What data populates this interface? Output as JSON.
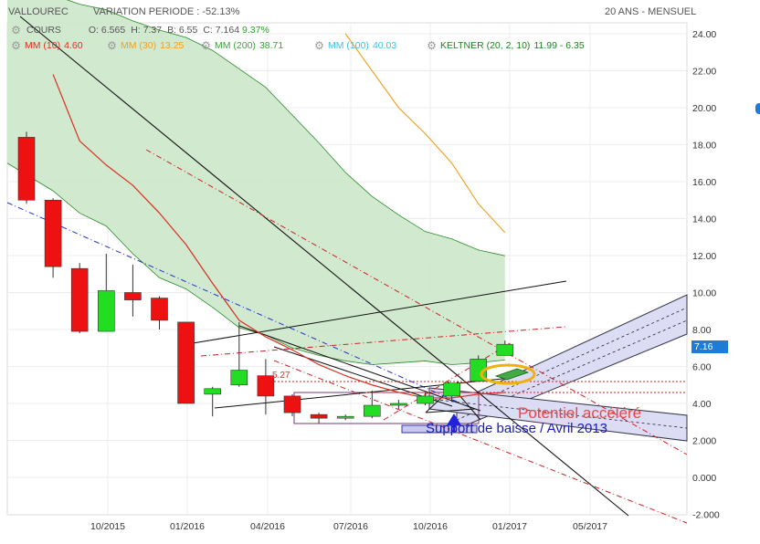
{
  "header": {
    "symbol": "VALLOUREC",
    "variation": "VARIATION PERIODE : -52.13%",
    "period": "20 ANS - MENSUEL"
  },
  "ohlc": {
    "label": "COURS",
    "open": "O: 6.565",
    "high": "H: 7.37",
    "low": "B: 6.55",
    "close": "C: 7.164",
    "change": "9.37%"
  },
  "legend": [
    {
      "label": "MM (10)",
      "value": "4.60",
      "color": "#e03020"
    },
    {
      "label": "MM (30)",
      "value": "13.25",
      "color": "#f0a020"
    },
    {
      "label": "MM (200)",
      "value": "38.71",
      "color": "#40a040"
    },
    {
      "label": "MM (100)",
      "value": "40.03",
      "color": "#40c0e0"
    },
    {
      "label": "KELTNER (20, 2, 10)",
      "value": "11.99 - 6.35",
      "color": "#208020"
    }
  ],
  "last_price": "7.16",
  "annotations": {
    "level_label": "5.27",
    "potential": "Potentiel accéléré",
    "support": "Support de baisse / Avril 2013"
  },
  "colors": {
    "up": "#22dd22",
    "down": "#ee1111",
    "keltner_fill": "#cfe8cc",
    "channel_fill": "#dcdcf4",
    "axis_badge": "#1e7bd6"
  },
  "chart_data": {
    "type": "candlestick",
    "y_axis": {
      "ticks": [
        24,
        22,
        20,
        18,
        16,
        14,
        12,
        10,
        8,
        6,
        4,
        2,
        0,
        -2
      ],
      "tick_labels": [
        "24.00",
        "22.00",
        "20.00",
        "18.00",
        "16.00",
        "14.00",
        "12.00",
        "10.00",
        "8.00",
        "6.00",
        "4.00",
        "2.000",
        "0.000",
        "-2.000"
      ],
      "ylim": [
        -2,
        26.2
      ]
    },
    "x_axis": {
      "tick_labels": [
        "10/2015",
        "01/2016",
        "04/2016",
        "07/2016",
        "10/2016",
        "01/2017",
        "05/2017"
      ]
    },
    "candles": [
      {
        "o": 18.4,
        "h": 18.7,
        "l": 14.8,
        "c": 15.0
      },
      {
        "o": 15.0,
        "h": 15.1,
        "l": 10.8,
        "c": 11.4
      },
      {
        "o": 11.3,
        "h": 11.6,
        "l": 7.8,
        "c": 7.9
      },
      {
        "o": 7.9,
        "h": 12.1,
        "l": 7.9,
        "c": 10.1
      },
      {
        "o": 10.0,
        "h": 11.5,
        "l": 8.7,
        "c": 9.6
      },
      {
        "o": 9.7,
        "h": 9.8,
        "l": 8.0,
        "c": 8.5
      },
      {
        "o": 8.4,
        "h": 8.4,
        "l": 4.0,
        "c": 4.0
      },
      {
        "o": 4.5,
        "h": 4.9,
        "l": 3.3,
        "c": 4.8
      },
      {
        "o": 5.0,
        "h": 8.4,
        "l": 4.9,
        "c": 5.8
      },
      {
        "o": 5.5,
        "h": 6.4,
        "l": 3.4,
        "c": 4.4
      },
      {
        "o": 4.4,
        "h": 4.5,
        "l": 3.3,
        "c": 3.5
      },
      {
        "o": 3.4,
        "h": 3.5,
        "l": 2.9,
        "c": 3.2
      },
      {
        "o": 3.2,
        "h": 3.4,
        "l": 3.1,
        "c": 3.3
      },
      {
        "o": 3.3,
        "h": 4.7,
        "l": 3.2,
        "c": 3.9
      },
      {
        "o": 3.9,
        "h": 4.2,
        "l": 3.7,
        "c": 4.0
      },
      {
        "o": 4.0,
        "h": 4.6,
        "l": 3.9,
        "c": 4.4
      },
      {
        "o": 4.4,
        "h": 5.1,
        "l": 4.1,
        "c": 5.1
      },
      {
        "o": 5.2,
        "h": 6.6,
        "l": 5.2,
        "c": 6.4
      },
      {
        "o": 6.6,
        "h": 7.4,
        "l": 6.6,
        "c": 7.2
      }
    ],
    "series": [
      {
        "name": "MM (10)",
        "values": [
          null,
          21.8,
          18.2,
          16.9,
          15.8,
          14.3,
          12.6,
          10.5,
          8.5,
          7.6,
          6.9,
          6.1,
          5.5,
          5.0,
          4.6,
          4.3,
          4.3,
          4.5,
          4.6
        ]
      },
      {
        "name": "MM (30)",
        "values": [
          null,
          null,
          null,
          null,
          null,
          null,
          null,
          null,
          null,
          null,
          null,
          null,
          24.0,
          22.0,
          20.0,
          18.6,
          17.0,
          14.8,
          13.25
        ]
      },
      {
        "name": "KELTNER upper",
        "values": [
          26.3,
          26.1,
          25.6,
          25.3,
          24.7,
          24.2,
          23.8,
          23.1,
          22.1,
          21.1,
          19.6,
          18.1,
          16.5,
          15.2,
          14.2,
          13.3,
          12.9,
          12.3,
          11.99
        ]
      },
      {
        "name": "KELTNER lower",
        "values": [
          17.0,
          15.5,
          14.3,
          13.6,
          12.1,
          10.8,
          10.2,
          9.2,
          8.1,
          7.7,
          7.0,
          6.6,
          6.3,
          6.1,
          6.2,
          6.3,
          6.1,
          6.2,
          6.35
        ]
      }
    ]
  }
}
